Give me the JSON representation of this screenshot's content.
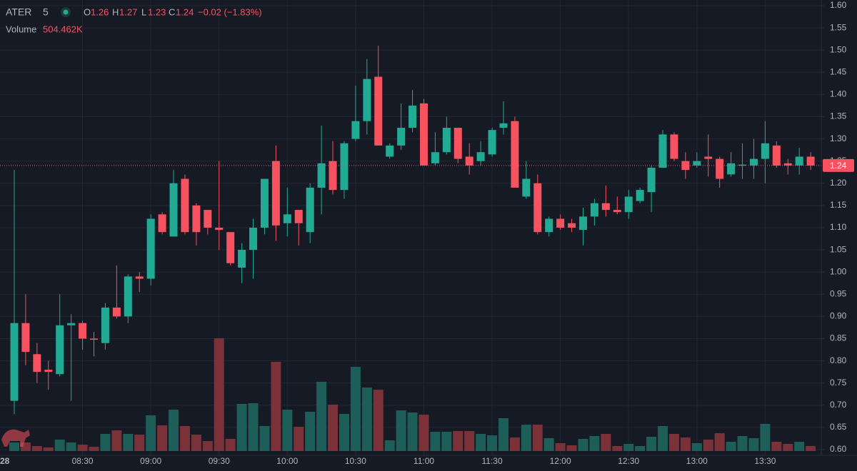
{
  "chart_data": {
    "type": "candlestick",
    "symbol": "ATER",
    "interval": "5",
    "ohlc_labels": [
      "O",
      "H",
      "L",
      "C"
    ],
    "change": "−0.02 (−1.83%)",
    "date_label": "28",
    "up_color": "#22ab94",
    "down_color": "#f7525f",
    "volume_up_color": "#1e5e58",
    "volume_down_color": "#7a3238",
    "categories": [
      null,
      null,
      null,
      null,
      null,
      null,
      "08:30",
      null,
      null,
      null,
      null,
      null,
      "09:00",
      null,
      null,
      null,
      null,
      null,
      "09:30",
      null,
      null,
      null,
      null,
      null,
      "10:00",
      null,
      null,
      null,
      null,
      null,
      "10:30",
      null,
      null,
      null,
      null,
      null,
      "11:00",
      null,
      null,
      null,
      null,
      null,
      "11:30",
      null,
      null,
      null,
      null,
      null,
      "12:00",
      null,
      null,
      null,
      null,
      null,
      "12:30",
      null,
      null,
      null,
      null,
      null,
      "13:00",
      null,
      null,
      null,
      null,
      null,
      "13:30",
      null,
      null,
      null,
      null
    ],
    "open": [
      0.71,
      0.885,
      0.815,
      0.78,
      0.77,
      0.88,
      0.885,
      0.85,
      0.84,
      0.92,
      0.9,
      0.99,
      0.985,
      1.13,
      1.08,
      1.21,
      1.15,
      1.14,
      1.1,
      1.09,
      1.01,
      1.05,
      1.1,
      1.25,
      1.11,
      1.14,
      1.09,
      1.19,
      1.25,
      1.185,
      1.3,
      1.34,
      1.44,
      1.26,
      1.285,
      1.325,
      1.38,
      1.245,
      1.27,
      1.325,
      1.26,
      1.25,
      1.265,
      1.325,
      1.34,
      1.17,
      1.2,
      1.09,
      1.12,
      1.11,
      1.095,
      1.125,
      1.155,
      1.14,
      1.135,
      1.16,
      1.18,
      1.235,
      1.31,
      1.25,
      1.24,
      1.26,
      1.255,
      1.22,
      1.24,
      1.24,
      1.255,
      1.285,
      1.245,
      1.24,
      1.26
    ],
    "high": [
      1.23,
      0.95,
      0.84,
      0.8,
      0.95,
      0.905,
      0.89,
      0.865,
      0.93,
      1.015,
      0.995,
      1.0,
      1.13,
      1.135,
      1.23,
      1.22,
      1.155,
      1.14,
      1.25,
      1.09,
      1.065,
      1.12,
      1.21,
      1.285,
      1.19,
      1.14,
      1.2,
      1.33,
      1.295,
      1.295,
      1.42,
      1.48,
      1.51,
      1.29,
      1.38,
      1.41,
      1.39,
      1.315,
      1.35,
      1.325,
      1.29,
      1.295,
      1.325,
      1.385,
      1.35,
      1.25,
      1.22,
      1.125,
      1.13,
      1.12,
      1.145,
      1.165,
      1.195,
      1.17,
      1.185,
      1.19,
      1.24,
      1.32,
      1.315,
      1.27,
      1.27,
      1.31,
      1.26,
      1.27,
      1.29,
      1.3,
      1.34,
      1.295,
      1.255,
      1.28,
      1.27
    ],
    "low": [
      0.68,
      0.79,
      0.75,
      0.735,
      0.765,
      0.71,
      0.825,
      0.81,
      0.825,
      0.895,
      0.885,
      0.955,
      0.97,
      1.085,
      1.08,
      1.085,
      1.06,
      1.085,
      1.05,
      1.015,
      0.975,
      0.985,
      1.085,
      1.07,
      1.08,
      1.06,
      1.065,
      1.13,
      1.175,
      1.165,
      1.295,
      1.31,
      1.285,
      1.255,
      1.275,
      1.315,
      1.24,
      1.24,
      1.265,
      1.245,
      1.22,
      1.24,
      1.26,
      1.31,
      1.19,
      1.165,
      1.085,
      1.08,
      1.095,
      1.09,
      1.06,
      1.105,
      1.125,
      1.13,
      1.12,
      1.155,
      1.135,
      1.235,
      1.25,
      1.21,
      1.235,
      1.215,
      1.19,
      1.215,
      1.21,
      1.21,
      1.2,
      1.235,
      1.22,
      1.22,
      1.23
    ],
    "close": [
      0.885,
      0.82,
      0.775,
      0.775,
      0.88,
      0.885,
      0.85,
      0.848,
      0.92,
      0.9,
      0.99,
      0.985,
      1.12,
      1.09,
      1.2,
      1.09,
      1.09,
      1.1,
      1.095,
      1.02,
      1.05,
      1.1,
      1.21,
      1.105,
      1.13,
      1.11,
      1.19,
      1.245,
      1.185,
      1.29,
      1.34,
      1.435,
      1.285,
      1.285,
      1.325,
      1.375,
      1.24,
      1.27,
      1.325,
      1.255,
      1.24,
      1.27,
      1.32,
      1.335,
      1.19,
      1.21,
      1.09,
      1.12,
      1.1,
      1.1,
      1.125,
      1.155,
      1.14,
      1.135,
      1.17,
      1.185,
      1.235,
      1.31,
      1.255,
      1.23,
      1.25,
      1.255,
      1.21,
      1.245,
      1.242,
      1.255,
      1.29,
      1.24,
      1.24,
      1.26,
      1.24
    ],
    "volume": {
      "name": "Volume",
      "value_label": "504.462K",
      "values": [
        854000,
        854000,
        498000,
        356000,
        1139000,
        854000,
        641000,
        427000,
        1709000,
        2065000,
        1709000,
        1638000,
        3560000,
        2563000,
        4130000,
        2492000,
        1638000,
        997000,
        11250000,
        1210000,
        4699000,
        4770000,
        2492000,
        8900000,
        4130000,
        2421000,
        3916000,
        6906000,
        4628000,
        3702000,
        8402000,
        6337000,
        6123000,
        1068000,
        4058000,
        3845000,
        3631000,
        1922000,
        1922000,
        1994000,
        1994000,
        1709000,
        1566000,
        3275000,
        1353000,
        2634000,
        2634000,
        1282000,
        783000,
        570000,
        1210000,
        1495000,
        1709000,
        498000,
        712000,
        498000,
        1424000,
        2492000,
        1709000,
        1353000,
        783000,
        1139000,
        1780000,
        926000,
        1495000,
        1282000,
        2706000,
        926000,
        712000,
        926000,
        504462
      ]
    },
    "volume_ylim": [
      0,
      45000000
    ],
    "ylim": [
      0.6,
      1.6
    ],
    "yticks": [
      {
        "value": 0.6,
        "label": "0.60"
      },
      {
        "value": 0.65,
        "label": "0.65"
      },
      {
        "value": 0.7,
        "label": "0.70"
      },
      {
        "value": 0.75,
        "label": "0.75"
      },
      {
        "value": 0.8,
        "label": "0.80"
      },
      {
        "value": 0.85,
        "label": "0.85"
      },
      {
        "value": 0.9,
        "label": "0.90"
      },
      {
        "value": 0.95,
        "label": "0.95"
      },
      {
        "value": 1.0,
        "label": "1.00"
      },
      {
        "value": 1.05,
        "label": "1.05"
      },
      {
        "value": 1.1,
        "label": "1.10"
      },
      {
        "value": 1.15,
        "label": "1.15"
      },
      {
        "value": 1.2,
        "label": "1.20"
      },
      {
        "value": 1.25,
        "label": "1.25"
      },
      {
        "value": 1.3,
        "label": "1.30"
      },
      {
        "value": 1.35,
        "label": "1.35"
      },
      {
        "value": 1.4,
        "label": "1.40"
      },
      {
        "value": 1.45,
        "label": "1.45"
      },
      {
        "value": 1.5,
        "label": "1.50"
      },
      {
        "value": 1.55,
        "label": "1.55"
      },
      {
        "value": 1.6,
        "label": "1.60"
      }
    ],
    "grid": true
  }
}
